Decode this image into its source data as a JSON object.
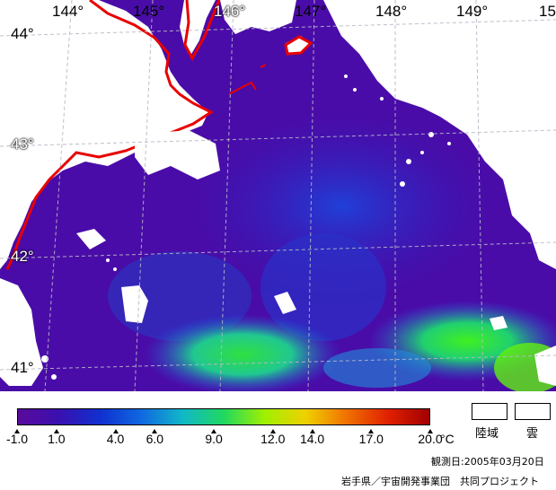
{
  "map": {
    "longitudes": [
      "144°",
      "145°",
      "146°",
      "147°",
      "148°",
      "149°",
      "15"
    ],
    "latitudes": [
      "44°",
      "43°",
      "42°",
      "41°"
    ]
  },
  "colorbar": {
    "ticks": [
      "-1.0",
      "1.0",
      "4.0",
      "6.0",
      "9.0",
      "12.0",
      "14.0",
      "17.0",
      "20.0"
    ],
    "unit": "°C",
    "range": [
      -1.0,
      20.0
    ],
    "colors": [
      "#5a0a9a",
      "#3a10b0",
      "#1030d0",
      "#1068e0",
      "#10b8c8",
      "#20d860",
      "#a0f000",
      "#f0d000",
      "#f07000",
      "#e02000",
      "#a00000"
    ]
  },
  "legend": {
    "land_label": "陸域",
    "cloud_label": "雲"
  },
  "footer": {
    "observed_date": "観測日:2005年03月20日",
    "credit": "岩手県／宇宙開発事業団　共同プロジェクト"
  }
}
